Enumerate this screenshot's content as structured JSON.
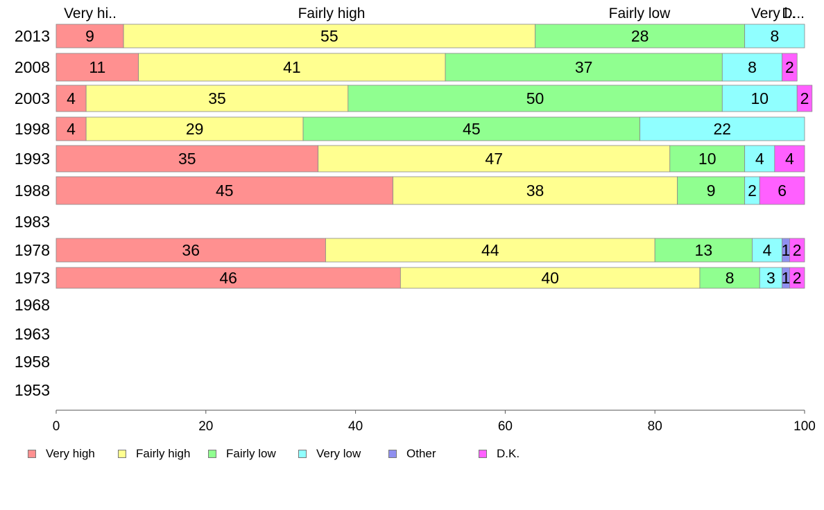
{
  "chart_data": {
    "type": "bar",
    "orientation": "horizontal",
    "stacked": true,
    "categories": [
      "2013",
      "2008",
      "2003",
      "1998",
      "1993",
      "1988",
      "1983",
      "1978",
      "1973",
      "1968",
      "1963",
      "1958",
      "1953"
    ],
    "series": [
      {
        "name": "Very high",
        "color": "#ff9090",
        "values": [
          9,
          11,
          4,
          4,
          35,
          45,
          null,
          36,
          46,
          null,
          null,
          null,
          null
        ]
      },
      {
        "name": "Fairly high",
        "color": "#ffff90",
        "values": [
          55,
          41,
          35,
          29,
          47,
          38,
          null,
          44,
          40,
          null,
          null,
          null,
          null
        ]
      },
      {
        "name": "Fairly low",
        "color": "#90ff90",
        "values": [
          28,
          37,
          50,
          45,
          10,
          9,
          null,
          13,
          8,
          null,
          null,
          null,
          null
        ]
      },
      {
        "name": "Very low",
        "color": "#90ffff",
        "values": [
          8,
          8,
          10,
          22,
          4,
          2,
          null,
          4,
          3,
          null,
          null,
          null,
          null
        ]
      },
      {
        "name": "Other",
        "color": "#9090f0",
        "values": [
          0,
          0,
          0,
          0,
          0,
          0,
          null,
          1,
          1,
          null,
          null,
          null,
          null
        ]
      },
      {
        "name": "D.K.",
        "color": "#ff60ff",
        "values": [
          0,
          2,
          2,
          0,
          4,
          6,
          null,
          2,
          2,
          null,
          null,
          null,
          null
        ]
      }
    ],
    "data_labels": [
      [
        "9",
        "55",
        "28",
        "8",
        "",
        ""
      ],
      [
        "11",
        "41",
        "37",
        "8",
        "",
        "2"
      ],
      [
        "4",
        "35",
        "50",
        "10",
        "",
        "2"
      ],
      [
        "4",
        "29",
        "45",
        "22",
        "",
        ""
      ],
      [
        "35",
        "47",
        "10",
        "4",
        "",
        "4"
      ],
      [
        "45",
        "38",
        "9",
        "2",
        "",
        "6"
      ],
      [
        "",
        "",
        "",
        "",
        "",
        ""
      ],
      [
        "36",
        "44",
        "13",
        "4",
        "1",
        "2"
      ],
      [
        "46",
        "40",
        "8",
        "3",
        "1",
        "2"
      ],
      [
        "",
        "",
        "",
        "",
        "",
        ""
      ],
      [
        "",
        "",
        "",
        "",
        "",
        ""
      ],
      [
        "",
        "",
        "",
        "",
        "",
        ""
      ],
      [
        "",
        "",
        "",
        "",
        "",
        ""
      ]
    ],
    "top_labels": [
      "Very hi..",
      "Fairly high",
      "Fairly low",
      "Very l..",
      "D..."
    ],
    "xlim": [
      0,
      100
    ],
    "xticks": [
      "0",
      "20",
      "40",
      "60",
      "80",
      "100"
    ],
    "grid": false,
    "legend_position": "bottom-left"
  }
}
